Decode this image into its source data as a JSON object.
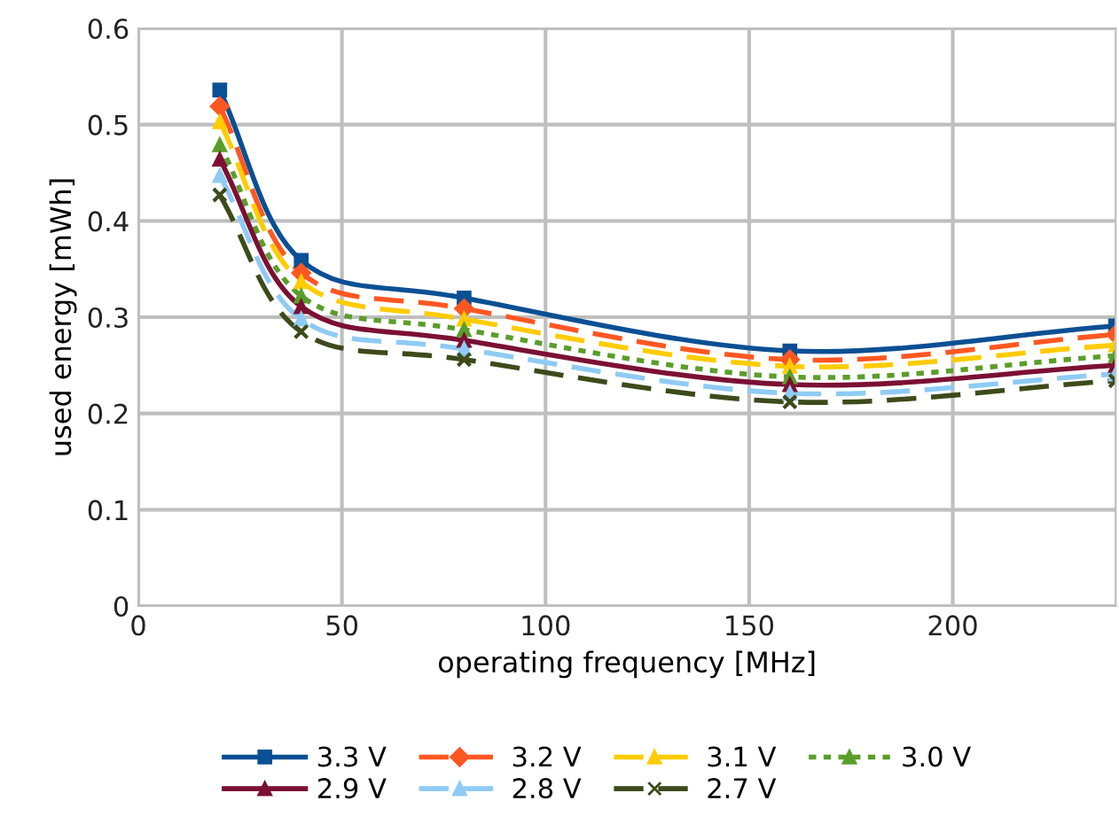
{
  "chart_data": {
    "type": "line",
    "xlabel": "operating frequency [MHz]",
    "ylabel": "used energy [mWh]",
    "x": [
      20,
      40,
      80,
      160,
      240
    ],
    "xlim": [
      0,
      240
    ],
    "xticks": [
      0,
      50,
      100,
      150,
      200
    ],
    "ylim": [
      0,
      0.6
    ],
    "yticks": [
      0,
      0.1,
      0.2,
      0.3,
      0.4,
      0.5,
      0.6
    ],
    "grid": true,
    "legend": "bottom",
    "series": [
      {
        "name": "3.3 V",
        "color": "#0b4f94",
        "marker": "square",
        "line_style": "solid",
        "values": [
          0.536,
          0.359,
          0.32,
          0.265,
          0.291
        ]
      },
      {
        "name": "3.2 V",
        "color": "#ff5722",
        "marker": "diamond",
        "line_style": "dashed",
        "values": [
          0.519,
          0.346,
          0.309,
          0.256,
          0.282
        ]
      },
      {
        "name": "3.1 V",
        "color": "#ffcc00",
        "marker": "triangle",
        "line_style": "dashed",
        "values": [
          0.503,
          0.337,
          0.298,
          0.249,
          0.271
        ]
      },
      {
        "name": "3.0 V",
        "color": "#5a9e2a",
        "marker": "triangle",
        "line_style": "dotted",
        "values": [
          0.479,
          0.322,
          0.287,
          0.238,
          0.26
        ]
      },
      {
        "name": "2.9 V",
        "color": "#7b1034",
        "marker": "triangle",
        "line_style": "solid",
        "values": [
          0.464,
          0.311,
          0.276,
          0.23,
          0.25
        ]
      },
      {
        "name": "2.8 V",
        "color": "#8ecbf5",
        "marker": "triangle",
        "line_style": "dashed",
        "values": [
          0.447,
          0.298,
          0.267,
          0.221,
          0.241
        ]
      },
      {
        "name": "2.7 V",
        "color": "#3d4a1a",
        "marker": "cross",
        "line_style": "dashed",
        "values": [
          0.427,
          0.285,
          0.256,
          0.212,
          0.234
        ]
      }
    ]
  }
}
